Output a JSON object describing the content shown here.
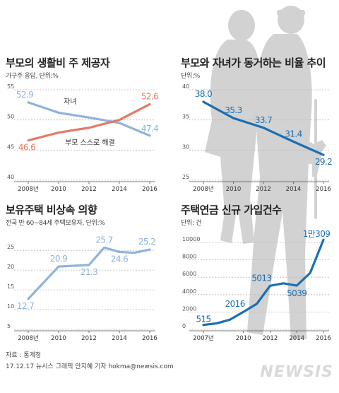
{
  "footer": {
    "source": "자료 : 통계청",
    "credit": "17.12.17 뉴시스 그래픽 안지혜 기자 hokma@newsis.com",
    "logo": "NEWSIS"
  },
  "colors": {
    "blue": "#1a6fb3",
    "light_blue": "#8fb3dc",
    "red": "#e57a66",
    "grid": "#b9b9b9",
    "silhouette": "#cfcfcf"
  },
  "chart_data": [
    {
      "type": "line",
      "title": "부모의 생활비 주 제공자",
      "subtitle": "가구주 응답, 단위:%",
      "x": [
        2008,
        2010,
        2012,
        2014,
        2016
      ],
      "xticks": [
        "2008년",
        "2010",
        "2012",
        "2014",
        "2016"
      ],
      "yticks": [
        40,
        45,
        50,
        55
      ],
      "ylim": [
        40,
        55
      ],
      "series": [
        {
          "name": "자녀",
          "values": [
            52.9,
            51.2,
            50.4,
            49.5,
            47.4
          ],
          "end_labels": [
            "52.9",
            "47.4"
          ],
          "color": "light_blue"
        },
        {
          "name": "부모 스스로 해결",
          "values": [
            46.6,
            47.9,
            48.7,
            50.0,
            52.6
          ],
          "end_labels": [
            "46.6",
            "52.6"
          ],
          "color": "red"
        }
      ]
    },
    {
      "type": "line",
      "title": "부모와 자녀가 동거하는 비율 추이",
      "subtitle": "단위:%",
      "x": [
        2008,
        2010,
        2012,
        2014,
        2016
      ],
      "xticks": [
        "2008년",
        "2010",
        "2012",
        "2014",
        "2016"
      ],
      "yticks": [
        25,
        30,
        35,
        40
      ],
      "ylim": [
        25,
        40
      ],
      "series": [
        {
          "name": "",
          "values": [
            38.0,
            35.3,
            33.7,
            31.4,
            29.2
          ],
          "labels": [
            "38.0",
            "35.3",
            "33.7",
            "31.4",
            "29.2"
          ],
          "color": "blue"
        }
      ]
    },
    {
      "type": "line",
      "title": "보유주택 비상속 의향",
      "subtitle": "전국 만 60~84세 주택보유자, 단위:%",
      "x": [
        2008,
        2010,
        2012,
        2013,
        2014,
        2015,
        2016
      ],
      "xticks": [
        "2008년",
        "2010",
        "2012",
        "2014",
        "2016"
      ],
      "xtick_values": [
        2008,
        2010,
        2012,
        2014,
        2016
      ],
      "yticks": [
        5,
        10,
        15,
        20,
        25
      ],
      "ylim": [
        5,
        27
      ],
      "series": [
        {
          "name": "",
          "values": [
            12.7,
            20.9,
            21.3,
            25.7,
            24.6,
            24.4,
            25.2
          ],
          "labels": [
            "12.7",
            "20.9",
            "21.3",
            "25.7",
            "24.6",
            "",
            "25.2"
          ],
          "color": "light_blue"
        }
      ]
    },
    {
      "type": "line",
      "title": "주택연금 신규 가입건수",
      "subtitle": "단위: 건",
      "x": [
        2007,
        2008,
        2009,
        2010,
        2011,
        2012,
        2013,
        2014,
        2015,
        2016
      ],
      "xticks": [
        "2007년",
        "2010",
        "2012",
        "2014",
        "2016"
      ],
      "xtick_values": [
        2007,
        2010,
        2012,
        2014,
        2016
      ],
      "yticks": [
        0,
        2000,
        4000,
        6000,
        8000,
        10000
      ],
      "ylim": [
        0,
        10000
      ],
      "series": [
        {
          "name": "",
          "values": [
            515,
            695,
            1124,
            2016,
            2936,
            5013,
            5296,
            5039,
            6486,
            10309
          ],
          "labels": [
            "515",
            "",
            "",
            "2016",
            "",
            "5013",
            "",
            "5039",
            "",
            "1만309"
          ],
          "color": "blue"
        }
      ]
    }
  ]
}
